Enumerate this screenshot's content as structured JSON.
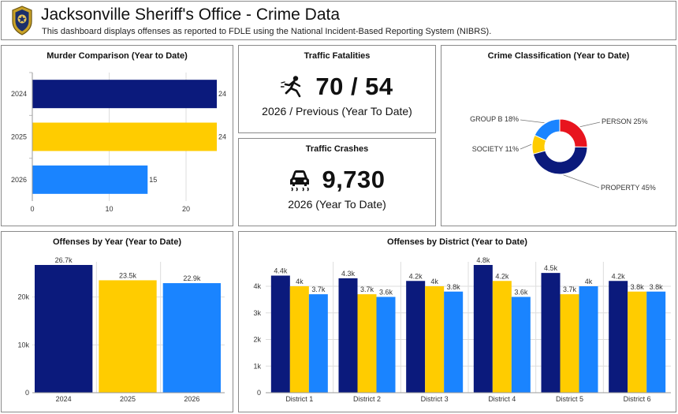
{
  "header": {
    "title": "Jacksonville Sheriff's Office - Crime Data",
    "subtitle": "This dashboard displays offenses as reported to FDLE using the National Incident-Based Reporting System (NIBRS)."
  },
  "colors": {
    "y2024": "#0b1a7c",
    "y2025": "#ffcc00",
    "y2026": "#1a84ff",
    "red": "#e8141e",
    "grid": "#dddddd",
    "axis": "#444444"
  },
  "murder": {
    "title": "Murder Comparison (Year to Date)",
    "chart_data": {
      "type": "bar",
      "orientation": "horizontal",
      "categories": [
        "2024",
        "2025",
        "2026"
      ],
      "values": [
        24,
        24,
        15
      ],
      "value_labels": [
        "24",
        "24",
        "15"
      ],
      "xlim": [
        0,
        24
      ],
      "ticks": [
        0,
        10,
        20
      ],
      "tick_labels": [
        "0",
        "10",
        "20"
      ],
      "grid": true
    }
  },
  "fatalities": {
    "title": "Traffic Fatalities",
    "value": "70 / 54",
    "caption": "2026 / Previous (Year To Date)",
    "icon": "pedestrian-hit-icon"
  },
  "crashes": {
    "title": "Traffic Crashes",
    "value": "9,730",
    "caption": "2026 (Year To Date)",
    "icon": "car-skid-icon"
  },
  "classification": {
    "title": "Crime Classification (Year to Date)",
    "chart_data": {
      "type": "pie",
      "donut": true,
      "slices": [
        {
          "label": "PERSON 25%",
          "value": 25,
          "color": "#e8141e"
        },
        {
          "label": "PROPERTY 45%",
          "value": 45,
          "color": "#0b1a7c"
        },
        {
          "label": "SOCIETY 11%",
          "value": 11,
          "color": "#ffcc00"
        },
        {
          "label": "GROUP B 18%",
          "value": 18,
          "color": "#1a84ff"
        }
      ]
    }
  },
  "by_year": {
    "title": "Offenses by Year (Year to Date)",
    "chart_data": {
      "type": "bar",
      "categories": [
        "2024",
        "2025",
        "2026"
      ],
      "values": [
        26.7,
        23.5,
        22.9
      ],
      "value_labels": [
        "26.7k",
        "23.5k",
        "22.9k"
      ],
      "units": "thousands",
      "ylim": [
        0,
        26.7
      ],
      "ticks": [
        0,
        10,
        20
      ],
      "tick_labels": [
        "0",
        "10k",
        "20k"
      ],
      "grid": true
    }
  },
  "by_district": {
    "title": "Offenses by District (Year to Date)",
    "chart_data": {
      "type": "bar",
      "categories": [
        "District 1",
        "District 2",
        "District 3",
        "District 4",
        "District 5",
        "District 6"
      ],
      "series": [
        {
          "values": [
            4.4,
            4.3,
            4.2,
            4.8,
            4.5,
            4.2
          ],
          "labels": [
            "4.4k",
            "4.3k",
            "4.2k",
            "4.8k",
            "4.5k",
            "4.2k"
          ]
        },
        {
          "values": [
            4.0,
            3.7,
            4.0,
            4.2,
            3.7,
            3.8
          ],
          "labels": [
            "4k",
            "3.7k",
            "4k",
            "4.2k",
            "3.7k",
            "3.8k"
          ]
        },
        {
          "values": [
            3.7,
            3.6,
            3.8,
            3.6,
            4.0,
            3.8
          ],
          "labels": [
            "3.7k",
            "3.6k",
            "3.8k",
            "3.6k",
            "4k",
            "3.8k"
          ]
        }
      ],
      "units": "thousands",
      "ylim": [
        0,
        4.8
      ],
      "ticks": [
        0,
        1,
        2,
        3,
        4
      ],
      "tick_labels": [
        "0",
        "1k",
        "2k",
        "3k",
        "4k"
      ],
      "grid": true
    }
  }
}
